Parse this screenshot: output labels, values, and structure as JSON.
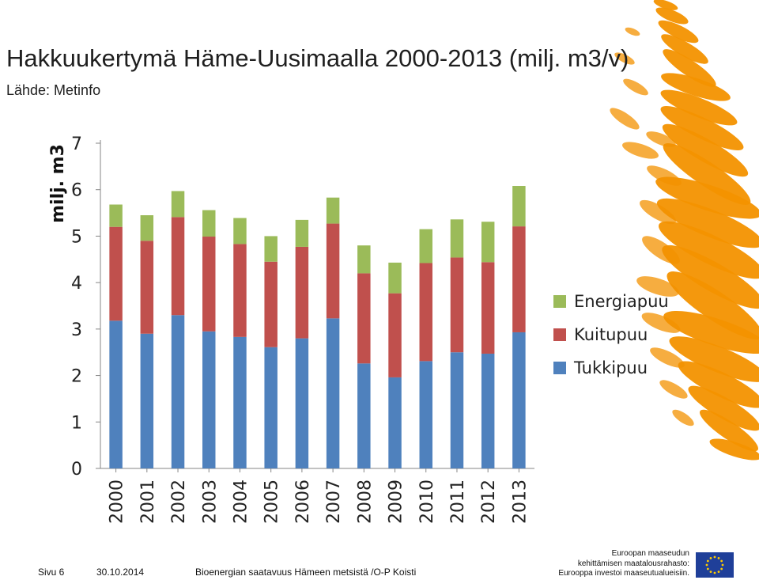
{
  "title": "Hakkuukertymä Häme-Uusimaalla 2000-2013 (milj. m3/v)",
  "source": "Lähde: Metinfo",
  "footer": {
    "page": "Sivu 6",
    "date": "30.10.2014",
    "subtitle": "Bioenergian saatavuus Hämeen metsistä /O-P Koisti"
  },
  "eu": {
    "line1": "Euroopan maaseudun",
    "line2": "kehittämisen maatalousrahasto:",
    "line3": "Eurooppa investoi maaseutualueisiin."
  },
  "colors": {
    "tukkipuu": "#4f81bd",
    "kuitupuu": "#c0504d",
    "energiapuu": "#9bbb59",
    "accent": "#f39200"
  },
  "chart_data": {
    "type": "bar",
    "stacked": true,
    "ylabel": "milj. m3",
    "ylim": [
      0,
      7
    ],
    "yticks": [
      0,
      1,
      2,
      3,
      4,
      5,
      6,
      7
    ],
    "legend_position": "right",
    "grid": false,
    "categories": [
      "2000",
      "2001",
      "2002",
      "2003",
      "2004",
      "2005",
      "2006",
      "2007",
      "2008",
      "2009",
      "2010",
      "2011",
      "2012",
      "2013"
    ],
    "series": [
      {
        "name": "Tukkipuu",
        "color": "#4f81bd",
        "values": [
          3.18,
          2.9,
          3.3,
          2.95,
          2.83,
          2.61,
          2.8,
          3.23,
          2.26,
          1.96,
          2.31,
          2.5,
          2.47,
          2.93
        ]
      },
      {
        "name": "Kuitupuu",
        "color": "#c0504d",
        "values": [
          2.02,
          2.0,
          2.11,
          2.04,
          2.0,
          1.84,
          1.97,
          2.04,
          1.94,
          1.81,
          2.11,
          2.04,
          1.97,
          2.28
        ]
      },
      {
        "name": "Energiapuu",
        "color": "#9bbb59",
        "values": [
          0.48,
          0.55,
          0.56,
          0.57,
          0.56,
          0.55,
          0.58,
          0.56,
          0.6,
          0.66,
          0.73,
          0.82,
          0.87,
          0.87
        ]
      }
    ]
  }
}
